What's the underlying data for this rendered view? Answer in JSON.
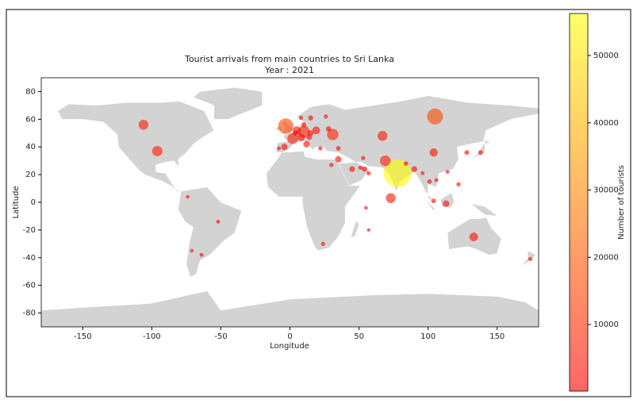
{
  "chart_data": {
    "type": "scatter",
    "title": "Tourist arrivals from main countries to Sri Lanka",
    "subtitle": "Year : 2021",
    "xlabel": "Longitude",
    "ylabel": "Latitude",
    "x": [
      78,
      105,
      -3,
      -106,
      -96,
      10,
      2,
      31,
      67,
      69,
      73,
      104,
      133,
      5,
      8,
      19,
      12,
      -4,
      45,
      113,
      90,
      138,
      128,
      15,
      54,
      35,
      15,
      14,
      4,
      84,
      101,
      104,
      122,
      174,
      24,
      -52,
      -64,
      -71,
      -74,
      35,
      30,
      28,
      10,
      8,
      26,
      51,
      57,
      22,
      -8,
      96,
      106,
      114,
      55,
      57,
      53
    ],
    "y": [
      21,
      62,
      55,
      56,
      37,
      51,
      46,
      49,
      48,
      30,
      3,
      36,
      -25,
      52,
      47,
      52,
      42,
      40,
      24,
      -1,
      24,
      36,
      36,
      61,
      24,
      31,
      50,
      47,
      50,
      28,
      15,
      1,
      13,
      -41,
      -30,
      -14,
      -38,
      -35,
      4,
      39,
      27,
      53,
      56,
      61,
      62,
      25,
      21,
      39,
      39,
      21,
      16,
      22,
      -4,
      -20,
      32
    ],
    "sizes": [
      56000,
      16000,
      15000,
      5000,
      5500,
      8000,
      6000,
      7000,
      5000,
      6000,
      5000,
      3000,
      3500,
      3000,
      2500,
      2500,
      1500,
      1500,
      1000,
      1500,
      1000,
      500,
      500,
      600,
      800,
      1500,
      1000,
      800,
      800,
      400,
      400,
      500,
      300,
      300,
      300,
      200,
      200,
      150,
      150,
      500,
      300,
      800,
      600,
      300,
      300,
      300,
      300,
      300,
      200,
      200,
      200,
      200,
      150,
      100,
      300
    ],
    "xlim": [
      -180,
      180
    ],
    "ylim": [
      -90,
      90
    ],
    "xticks": [
      -150,
      -100,
      -50,
      0,
      50,
      100,
      150
    ],
    "yticks": [
      -80,
      -60,
      -40,
      -20,
      0,
      20,
      40,
      60,
      80
    ],
    "colormap": [
      "#ff0000",
      "#ffff00"
    ],
    "alpha": 0.6,
    "colorbar": {
      "label": "Number of tourists",
      "lim": [
        100,
        56250
      ],
      "ticks": [
        10000,
        20000,
        30000,
        40000,
        50000
      ]
    }
  }
}
